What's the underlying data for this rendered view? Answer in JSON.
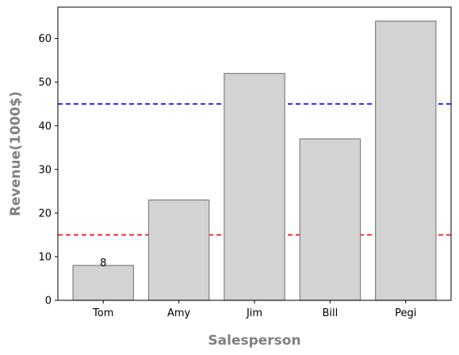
{
  "chart_data": {
    "type": "bar",
    "title": "",
    "xlabel": "Salesperson",
    "ylabel": "Revenue(1000$)",
    "categories": [
      "Tom",
      "Amy",
      "Jim",
      "Bill",
      "Pegi"
    ],
    "values": [
      8,
      23,
      52,
      37,
      64
    ],
    "ylim": [
      0,
      67.2
    ],
    "yticks": [
      0,
      10,
      20,
      30,
      40,
      50,
      60
    ],
    "grid": false,
    "bar_color": "#d3d3d3",
    "bar_edge_color": "#808080",
    "reference_lines": [
      {
        "y": 45,
        "color": "#0000ff",
        "style": "dashed"
      },
      {
        "y": 15,
        "color": "#ff0000",
        "style": "dashed"
      }
    ],
    "data_labels": [
      {
        "category": "Tom",
        "text": "8"
      }
    ]
  }
}
